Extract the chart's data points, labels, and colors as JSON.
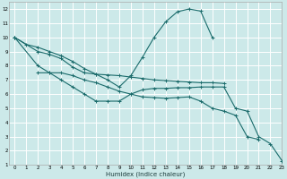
{
  "xlabel": "Humidex (Indice chaleur)",
  "bg_color": "#cce9e9",
  "grid_color": "#ffffff",
  "line_color": "#1a6b6b",
  "xlim": [
    -0.5,
    23
  ],
  "ylim": [
    1,
    12.5
  ],
  "xticks": [
    0,
    1,
    2,
    3,
    4,
    5,
    6,
    7,
    8,
    9,
    10,
    11,
    12,
    13,
    14,
    15,
    16,
    17,
    18,
    19,
    20,
    21,
    22,
    23
  ],
  "yticks": [
    1,
    2,
    3,
    4,
    5,
    6,
    7,
    8,
    9,
    10,
    11,
    12
  ],
  "line1_x": [
    0,
    1,
    2,
    3,
    4,
    5,
    6,
    7,
    8,
    9,
    10,
    11,
    12,
    13,
    14,
    15,
    16,
    17
  ],
  "line1_y": [
    10,
    9.5,
    9.3,
    9.0,
    8.7,
    8.3,
    7.8,
    7.4,
    7.0,
    6.5,
    7.3,
    8.6,
    10.0,
    11.1,
    11.8,
    12.0,
    11.85,
    10.0
  ],
  "line2_x": [
    0,
    2,
    3,
    4,
    5,
    6,
    7,
    8,
    9,
    10,
    11,
    12,
    13,
    14,
    15,
    16,
    17,
    18
  ],
  "line2_y": [
    10,
    9.0,
    8.8,
    8.5,
    7.9,
    7.5,
    7.4,
    7.35,
    7.3,
    7.2,
    7.1,
    7.0,
    6.95,
    6.9,
    6.85,
    6.8,
    6.8,
    6.75
  ],
  "line3_x": [
    2,
    3,
    4,
    5,
    6,
    7,
    8,
    9,
    10,
    11,
    12,
    13,
    14,
    15,
    16,
    17,
    18,
    19,
    20,
    21
  ],
  "line3_y": [
    7.5,
    7.5,
    7.5,
    7.3,
    7.0,
    6.8,
    6.5,
    6.2,
    6.0,
    5.8,
    5.75,
    5.7,
    5.75,
    5.8,
    5.5,
    5.0,
    4.8,
    4.5,
    3.0,
    2.8
  ],
  "line4_x": [
    0,
    2,
    3,
    4,
    5,
    6,
    7,
    8,
    9,
    10,
    11,
    12,
    13,
    14,
    15,
    16,
    17,
    18,
    19,
    20,
    21,
    22,
    23
  ],
  "line4_y": [
    10,
    8.0,
    7.5,
    7.0,
    6.5,
    6.0,
    5.5,
    5.5,
    5.5,
    6.0,
    6.3,
    6.4,
    6.4,
    6.45,
    6.45,
    6.5,
    6.5,
    6.5,
    5.0,
    4.8,
    3.0,
    2.5,
    1.3
  ]
}
